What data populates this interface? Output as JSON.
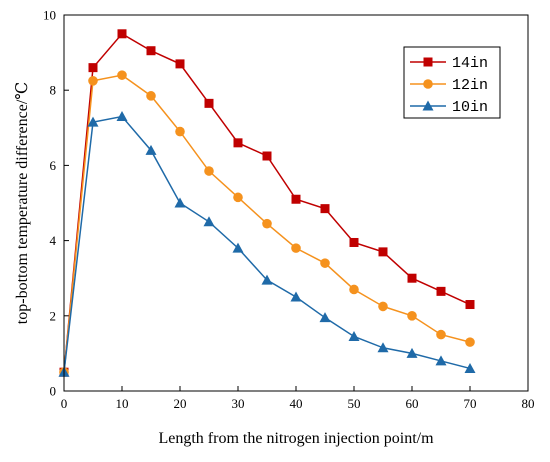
{
  "chart_data": {
    "type": "line",
    "xlabel": "Length from the nitrogen injection point/m",
    "ylabel": "top-bottom temperature difference/℃",
    "xlim": [
      0,
      80
    ],
    "ylim": [
      0,
      10
    ],
    "x_ticks": [
      0,
      10,
      20,
      30,
      40,
      50,
      60,
      70,
      80
    ],
    "y_ticks": [
      0,
      2,
      4,
      6,
      8,
      10
    ],
    "grid": false,
    "legend_position": "top-right",
    "x": [
      0,
      5,
      10,
      15,
      20,
      25,
      30,
      35,
      40,
      45,
      50,
      55,
      60,
      65,
      70
    ],
    "series": [
      {
        "name": "14in",
        "color": "#c00000",
        "marker": "square",
        "values": [
          0.5,
          8.6,
          9.5,
          9.05,
          8.7,
          7.65,
          6.6,
          6.25,
          5.1,
          4.85,
          3.95,
          3.7,
          3.0,
          2.65,
          2.3
        ]
      },
      {
        "name": "12in",
        "color": "#f5921e",
        "marker": "circle",
        "values": [
          0.5,
          8.25,
          8.4,
          7.85,
          6.9,
          5.85,
          5.15,
          4.45,
          3.8,
          3.4,
          2.7,
          2.25,
          2.0,
          1.5,
          1.3
        ]
      },
      {
        "name": "10in",
        "color": "#1f6aa8",
        "marker": "triangle",
        "values": [
          0.5,
          7.15,
          7.3,
          6.4,
          5.0,
          4.5,
          3.8,
          2.95,
          2.5,
          1.95,
          1.45,
          1.15,
          1.0,
          0.8,
          0.6
        ]
      }
    ]
  }
}
